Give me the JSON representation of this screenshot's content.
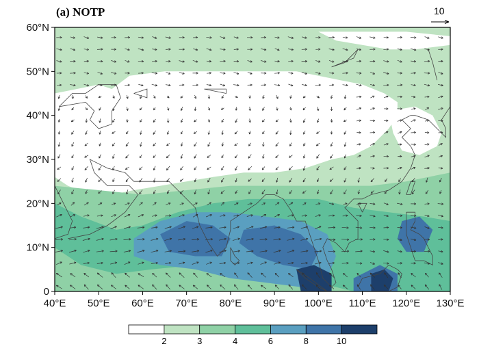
{
  "panel": {
    "title": "(a) NOTP",
    "reference_vector": {
      "label": "10",
      "magnitude": 10
    }
  },
  "axes": {
    "x": {
      "unit": "degrees_east",
      "range": [
        40,
        130
      ],
      "ticks": [
        40,
        50,
        60,
        70,
        80,
        90,
        100,
        110,
        120,
        130
      ],
      "tick_labels": [
        "40°E",
        "50°E",
        "60°E",
        "70°E",
        "80°E",
        "90°E",
        "100°E",
        "110°E",
        "120°E",
        "130°E"
      ]
    },
    "y": {
      "unit": "degrees_north",
      "range": [
        0,
        60
      ],
      "ticks": [
        0,
        10,
        20,
        30,
        40,
        50,
        60
      ],
      "tick_labels": [
        "0",
        "10°N",
        "20°N",
        "30°N",
        "40°N",
        "50°N",
        "60°N"
      ]
    }
  },
  "colorbar": {
    "levels": [
      2,
      3,
      4,
      6,
      8,
      10
    ],
    "labels": [
      "2",
      "3",
      "4",
      "6",
      "8",
      "10"
    ],
    "colors": [
      "#ffffff",
      "#bfe3c2",
      "#8fd1a6",
      "#5fbf9a",
      "#5a9fc0",
      "#3f74a8",
      "#1d3f6b"
    ]
  },
  "map_field": {
    "description": "shaded scalar field with overlaid wind vectors",
    "shading_regions": [
      {
        "level_bin": 0,
        "color": "#ffffff",
        "polygon_lonlat": [
          [
            53,
            46
          ],
          [
            57,
            49
          ],
          [
            65,
            50
          ],
          [
            75,
            50
          ],
          [
            85,
            50
          ],
          [
            95,
            50
          ],
          [
            100,
            49
          ],
          [
            105,
            48
          ],
          [
            110,
            47
          ],
          [
            115,
            45
          ],
          [
            118,
            43
          ],
          [
            118,
            40
          ],
          [
            116,
            37
          ],
          [
            112,
            33
          ],
          [
            108,
            31
          ],
          [
            103,
            30
          ],
          [
            97,
            28
          ],
          [
            90,
            27
          ],
          [
            83,
            27
          ],
          [
            76,
            26
          ],
          [
            70,
            25
          ],
          [
            64,
            24
          ],
          [
            58,
            23
          ],
          [
            53,
            22
          ],
          [
            48,
            22
          ],
          [
            43,
            24
          ],
          [
            40,
            26
          ],
          [
            40,
            45
          ],
          [
            45,
            46
          ],
          [
            50,
            47
          ]
        ]
      },
      {
        "level_bin": 0,
        "color": "#ffffff",
        "polygon_lonlat": [
          [
            100,
            59
          ],
          [
            110,
            59
          ],
          [
            120,
            59
          ],
          [
            130,
            58
          ],
          [
            130,
            56
          ],
          [
            122,
            55
          ],
          [
            116,
            55
          ],
          [
            110,
            56
          ],
          [
            104,
            57
          ]
        ]
      },
      {
        "level_bin": 0,
        "color": "#ffffff",
        "polygon_lonlat": [
          [
            116,
            41
          ],
          [
            122,
            42
          ],
          [
            126,
            40
          ],
          [
            128,
            36
          ],
          [
            127,
            33
          ],
          [
            123,
            31
          ],
          [
            119,
            32
          ],
          [
            117,
            36
          ]
        ]
      },
      {
        "level_bin": 2,
        "color": "#8fd1a6",
        "polygon_lonlat": [
          [
            40,
            24
          ],
          [
            50,
            23
          ],
          [
            60,
            22
          ],
          [
            70,
            23
          ],
          [
            80,
            24
          ],
          [
            88,
            24
          ],
          [
            96,
            24
          ],
          [
            104,
            24
          ],
          [
            112,
            24
          ],
          [
            120,
            25
          ],
          [
            130,
            27
          ],
          [
            130,
            0
          ],
          [
            40,
            0
          ]
        ]
      },
      {
        "level_bin": 3,
        "color": "#5fbf9a",
        "polygon_lonlat": [
          [
            40,
            20
          ],
          [
            46,
            17
          ],
          [
            54,
            14
          ],
          [
            60,
            15
          ],
          [
            68,
            18
          ],
          [
            76,
            20
          ],
          [
            84,
            21
          ],
          [
            92,
            21
          ],
          [
            100,
            21
          ],
          [
            108,
            19
          ],
          [
            116,
            18
          ],
          [
            124,
            17
          ],
          [
            130,
            16
          ],
          [
            130,
            0
          ],
          [
            108,
            0
          ],
          [
            100,
            2
          ],
          [
            92,
            3
          ],
          [
            84,
            5
          ],
          [
            72,
            6
          ],
          [
            62,
            5
          ],
          [
            54,
            4
          ],
          [
            46,
            6
          ],
          [
            40,
            10
          ]
        ]
      },
      {
        "level_bin": 4,
        "color": "#5a9fc0",
        "polygon_lonlat": [
          [
            58,
            12
          ],
          [
            64,
            16
          ],
          [
            72,
            18
          ],
          [
            80,
            18
          ],
          [
            88,
            17
          ],
          [
            96,
            16
          ],
          [
            102,
            13
          ],
          [
            104,
            8
          ],
          [
            102,
            3
          ],
          [
            96,
            1
          ],
          [
            88,
            2
          ],
          [
            80,
            3
          ],
          [
            72,
            5
          ],
          [
            64,
            6
          ],
          [
            58,
            8
          ]
        ]
      },
      {
        "level_bin": 5,
        "color": "#3f74a8",
        "polygon_lonlat": [
          [
            64,
            13
          ],
          [
            70,
            16
          ],
          [
            76,
            15
          ],
          [
            80,
            12
          ],
          [
            78,
            8
          ],
          [
            72,
            8
          ],
          [
            66,
            9
          ]
        ]
      },
      {
        "level_bin": 5,
        "color": "#3f74a8",
        "polygon_lonlat": [
          [
            83,
            14
          ],
          [
            90,
            15
          ],
          [
            96,
            13
          ],
          [
            100,
            9
          ],
          [
            98,
            5
          ],
          [
            92,
            6
          ],
          [
            86,
            8
          ],
          [
            82,
            11
          ]
        ]
      },
      {
        "level_bin": 5,
        "color": "#3f74a8",
        "polygon_lonlat": [
          [
            108,
            3
          ],
          [
            114,
            6
          ],
          [
            118,
            4
          ],
          [
            118,
            0
          ],
          [
            108,
            0
          ]
        ]
      },
      {
        "level_bin": 5,
        "color": "#3f74a8",
        "polygon_lonlat": [
          [
            119,
            16
          ],
          [
            123,
            17
          ],
          [
            126,
            14
          ],
          [
            124,
            9
          ],
          [
            120,
            9
          ],
          [
            118,
            12
          ]
        ]
      },
      {
        "level_bin": 6,
        "color": "#1d3f6b",
        "polygon_lonlat": [
          [
            95,
            5
          ],
          [
            99,
            6
          ],
          [
            103,
            4
          ],
          [
            103,
            0
          ],
          [
            96,
            0
          ]
        ]
      },
      {
        "level_bin": 6,
        "color": "#1d3f6b",
        "polygon_lonlat": [
          [
            112,
            4
          ],
          [
            115,
            5
          ],
          [
            117,
            3
          ],
          [
            116,
            0
          ],
          [
            112,
            0
          ]
        ]
      }
    ],
    "coastlines_lonlat": [
      [
        [
          40,
          12
        ],
        [
          43,
          13
        ],
        [
          44,
          16
        ],
        [
          42,
          20
        ],
        [
          40,
          24
        ]
      ],
      [
        [
          43,
          12
        ],
        [
          48,
          13
        ],
        [
          52,
          15
        ],
        [
          56,
          18
        ],
        [
          59,
          22
        ],
        [
          57,
          24
        ],
        [
          52,
          24
        ],
        [
          49,
          27
        ],
        [
          48,
          30
        ],
        [
          52,
          28
        ],
        [
          56,
          27
        ],
        [
          58,
          25
        ],
        [
          61,
          25
        ],
        [
          66,
          25
        ],
        [
          68,
          23
        ],
        [
          70,
          21
        ],
        [
          72,
          19
        ],
        [
          73,
          15
        ],
        [
          75,
          11
        ],
        [
          77,
          8
        ],
        [
          79,
          10
        ],
        [
          80,
          14
        ],
        [
          80,
          16
        ],
        [
          83,
          18
        ],
        [
          86,
          20
        ],
        [
          88,
          22
        ],
        [
          90,
          22
        ],
        [
          92,
          21
        ],
        [
          94,
          18
        ],
        [
          95,
          16
        ],
        [
          97,
          16
        ],
        [
          98,
          13
        ],
        [
          99,
          10
        ],
        [
          100,
          7
        ],
        [
          101,
          3
        ],
        [
          103,
          1
        ],
        [
          104,
          2
        ],
        [
          103,
          5
        ],
        [
          102,
          7
        ],
        [
          101,
          10
        ],
        [
          102,
          12
        ],
        [
          104,
          11
        ],
        [
          106,
          9
        ],
        [
          107,
          11
        ],
        [
          109,
          12
        ],
        [
          109,
          16
        ],
        [
          106,
          19
        ],
        [
          108,
          21
        ],
        [
          110,
          21
        ],
        [
          112,
          22
        ],
        [
          116,
          23
        ],
        [
          119,
          25
        ],
        [
          121,
          28
        ],
        [
          122,
          31
        ],
        [
          121,
          33
        ],
        [
          119,
          35
        ],
        [
          121,
          37
        ],
        [
          119,
          39
        ],
        [
          121,
          40
        ],
        [
          122,
          40
        ],
        [
          125,
          39
        ],
        [
          127,
          37
        ],
        [
          129,
          35
        ],
        [
          129,
          37
        ],
        [
          128,
          39
        ],
        [
          130,
          42
        ]
      ],
      [
        [
          80,
          10
        ],
        [
          81,
          8
        ],
        [
          82,
          7
        ],
        [
          81,
          6
        ],
        [
          80,
          7
        ],
        [
          80,
          10
        ]
      ],
      [
        [
          95,
          5
        ],
        [
          98,
          3
        ],
        [
          102,
          0
        ],
        [
          104,
          -1
        ],
        [
          100,
          1
        ],
        [
          97,
          3
        ],
        [
          95,
          5
        ]
      ],
      [
        [
          109,
          1
        ],
        [
          110,
          3
        ],
        [
          114,
          4
        ],
        [
          116,
          6
        ],
        [
          118,
          5
        ],
        [
          119,
          4
        ],
        [
          118,
          1
        ],
        [
          116,
          0
        ]
      ],
      [
        [
          120,
          18
        ],
        [
          122,
          18
        ],
        [
          122,
          16
        ],
        [
          121,
          14
        ],
        [
          123,
          13
        ],
        [
          124,
          12
        ],
        [
          125,
          10
        ],
        [
          126,
          8
        ],
        [
          126,
          6
        ],
        [
          124,
          7
        ],
        [
          122,
          7
        ],
        [
          121,
          10
        ],
        [
          120,
          13
        ],
        [
          120,
          18
        ]
      ],
      [
        [
          120,
          22
        ],
        [
          121,
          25
        ],
        [
          122,
          25
        ],
        [
          121,
          22
        ],
        [
          120,
          22
        ]
      ],
      [
        [
          110,
          18
        ],
        [
          111,
          20
        ],
        [
          109,
          20
        ],
        [
          110,
          18
        ]
      ],
      [
        [
          130,
          31
        ],
        [
          131,
          34
        ],
        [
          132,
          35
        ],
        [
          131,
          36
        ]
      ],
      [
        [
          41,
          42
        ],
        [
          44,
          45
        ],
        [
          47,
          45
        ],
        [
          50,
          47
        ],
        [
          54,
          47
        ],
        [
          55,
          44
        ],
        [
          53,
          41
        ],
        [
          53,
          38
        ],
        [
          50,
          37
        ],
        [
          48,
          39
        ],
        [
          49,
          41
        ],
        [
          47,
          43
        ],
        [
          41,
          42
        ]
      ],
      [
        [
          58,
          45
        ],
        [
          61,
          46
        ],
        [
          61,
          44
        ],
        [
          58,
          45
        ]
      ],
      [
        [
          74,
          46
        ],
        [
          79,
          46
        ],
        [
          79,
          45
        ],
        [
          74,
          46
        ]
      ],
      [
        [
          103,
          51
        ],
        [
          108,
          53
        ],
        [
          109,
          55
        ],
        [
          106,
          52
        ],
        [
          103,
          51
        ]
      ],
      [
        [
          40,
          60
        ],
        [
          48,
          60
        ],
        [
          52,
          60
        ]
      ],
      [
        [
          125,
          55
        ],
        [
          126,
          52
        ],
        [
          127,
          48
        ]
      ]
    ]
  }
}
